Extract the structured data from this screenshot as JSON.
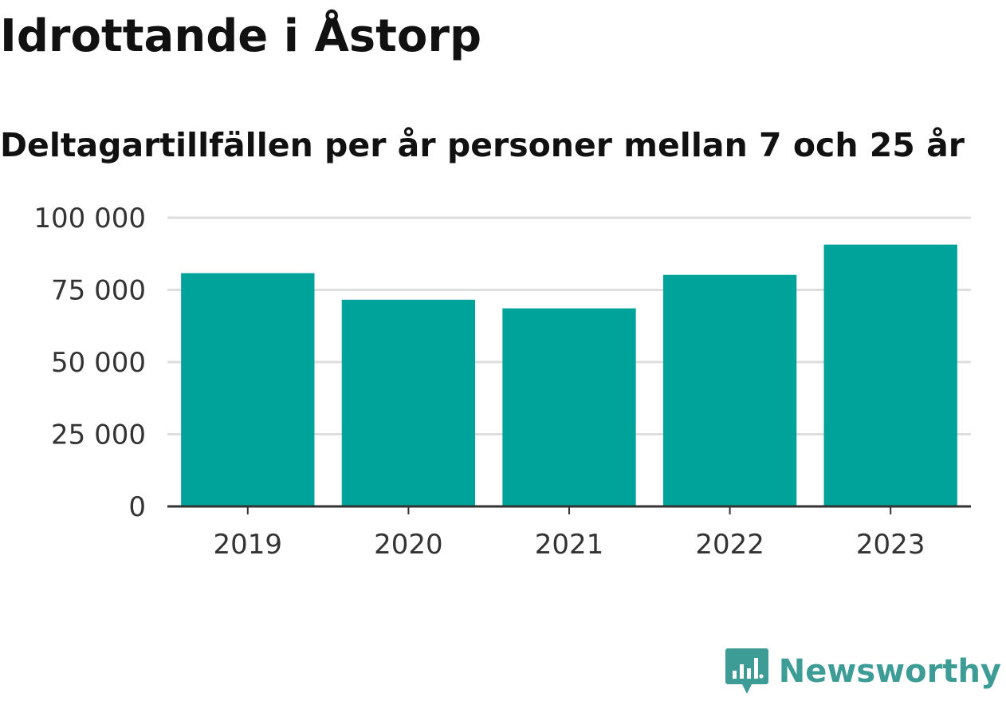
{
  "header": {
    "title": "Idrottande i Åstorp",
    "subtitle": "Deltagartillfällen per år personer mellan 7 och 25 år"
  },
  "chart_data": {
    "type": "bar",
    "title": "Idrottande i Åstorp",
    "subtitle": "Deltagartillfällen per år personer mellan 7 och 25 år",
    "xlabel": "",
    "ylabel": "",
    "categories": [
      "2019",
      "2020",
      "2021",
      "2022",
      "2023"
    ],
    "values": [
      80800,
      71600,
      68600,
      80200,
      90700
    ],
    "ylim": [
      0,
      100000
    ],
    "yticks": [
      0,
      25000,
      50000,
      75000,
      100000
    ],
    "ytick_labels": [
      "0",
      "25 000",
      "50 000",
      "75 000",
      "100 000"
    ],
    "grid": true,
    "legend": "none",
    "colors": {
      "bar": "#00a39a",
      "grid": "#dddddd",
      "axis": "#333333"
    }
  },
  "branding": {
    "name": "Newsworthy",
    "icon": "newsworthy-logo-icon",
    "color": "#3e9c96"
  }
}
